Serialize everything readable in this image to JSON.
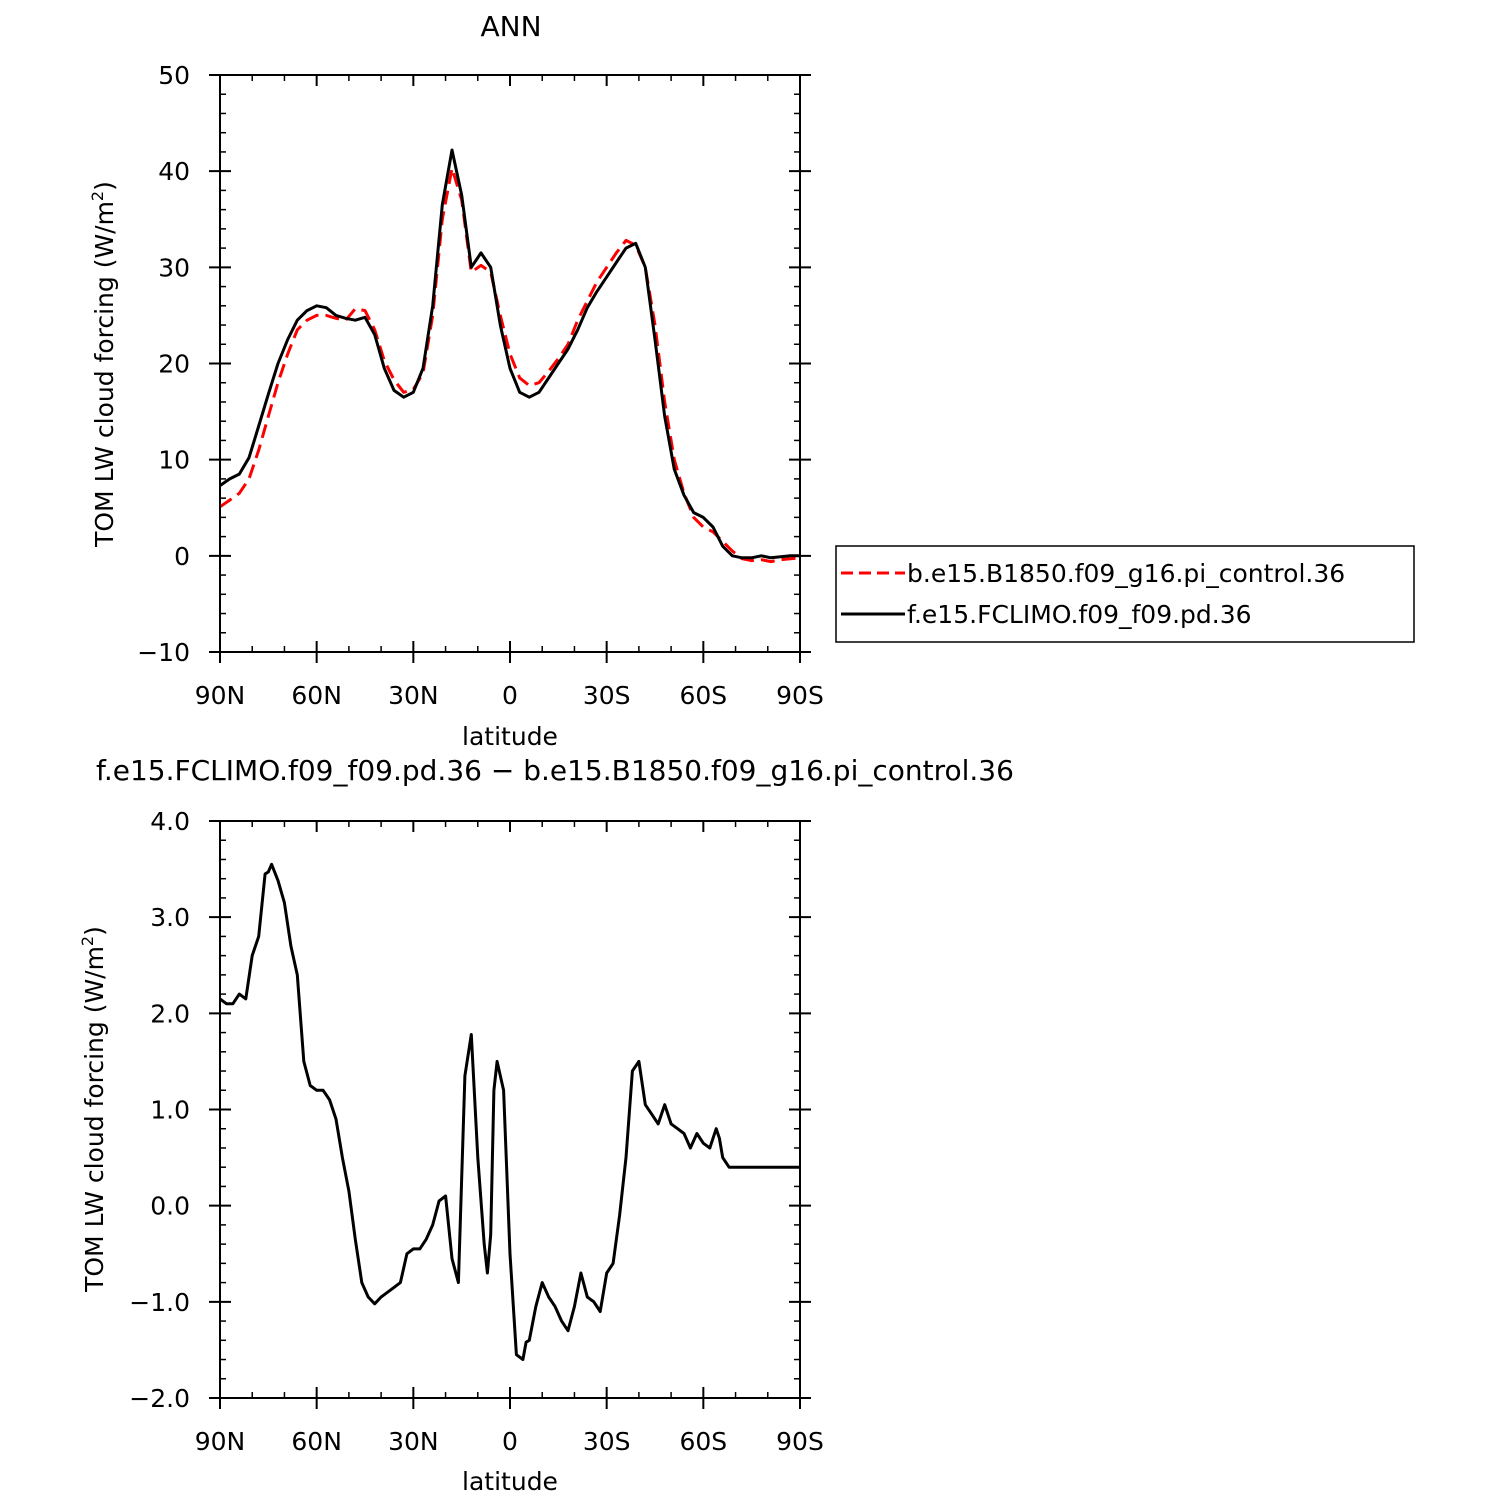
{
  "chart_data": [
    {
      "type": "line",
      "title": "ANN",
      "xlabel": "latitude",
      "ylabel": "TOM LW cloud forcing (W/m²)",
      "ylabel_main": "TOM LW cloud forcing (W/m",
      "ylabel_sup": "2",
      "ylabel_end": ")",
      "x_direction": "90N (left) to 90S (right), values in degrees latitude",
      "xlim": [
        90,
        -90
      ],
      "ylim": [
        -10,
        50
      ],
      "xticks": [
        90,
        60,
        30,
        0,
        -30,
        -60,
        -90
      ],
      "xtick_labels": [
        "90N",
        "60N",
        "30N",
        "0",
        "30S",
        "60S",
        "90S"
      ],
      "yticks": [
        -10,
        0,
        10,
        20,
        30,
        40,
        50
      ],
      "ytick_labels": [
        "−10",
        "0",
        "10",
        "20",
        "30",
        "40",
        "50"
      ],
      "legend_position": "right",
      "series": [
        {
          "name": "b.e15.B1850.f09_g16.pi_control.36",
          "color": "#ff0000",
          "dash": "dashed",
          "x": [
            90,
            87,
            84,
            81,
            78,
            75,
            72,
            69,
            66,
            63,
            60,
            57,
            54,
            51,
            48,
            45,
            42,
            39,
            36,
            33,
            30,
            27,
            24,
            21,
            18,
            15,
            12,
            9,
            6,
            3,
            0,
            -3,
            -6,
            -9,
            -12,
            -15,
            -18,
            -21,
            -24,
            -27,
            -30,
            -33,
            -36,
            -39,
            -42,
            -45,
            -48,
            -51,
            -54,
            -57,
            -60,
            -63,
            -66,
            -69,
            -72,
            -75,
            -78,
            -81,
            -84,
            -87,
            -90
          ],
          "y": [
            5.1,
            5.8,
            6.5,
            8.0,
            11.0,
            14.5,
            18.0,
            21.0,
            23.5,
            24.5,
            25.0,
            25.0,
            24.7,
            24.5,
            25.7,
            25.5,
            23.5,
            20.3,
            18.3,
            17.0,
            17.3,
            19.0,
            25.0,
            35.0,
            40.3,
            37.0,
            29.5,
            30.2,
            29.5,
            25.0,
            21.0,
            18.5,
            17.7,
            18.0,
            19.2,
            20.5,
            22.0,
            24.5,
            26.5,
            28.5,
            30.0,
            31.5,
            32.8,
            32.3,
            30.0,
            24.0,
            16.0,
            10.0,
            6.5,
            4.0,
            3.0,
            2.5,
            1.5,
            0.5,
            -0.3,
            -0.5,
            -0.4,
            -0.6,
            -0.4,
            -0.3,
            -0.2
          ]
        },
        {
          "name": "f.e15.FCLIMO.f09_f09.pd.36",
          "color": "#000000",
          "dash": "solid",
          "x": [
            90,
            87,
            84,
            81,
            78,
            75,
            72,
            69,
            66,
            63,
            60,
            57,
            54,
            51,
            48,
            45,
            42,
            39,
            36,
            33,
            30,
            27,
            24,
            21,
            18,
            15,
            12,
            9,
            6,
            3,
            0,
            -3,
            -6,
            -9,
            -12,
            -15,
            -18,
            -21,
            -24,
            -27,
            -30,
            -33,
            -36,
            -39,
            -42,
            -45,
            -48,
            -51,
            -54,
            -57,
            -60,
            -63,
            -66,
            -69,
            -72,
            -75,
            -78,
            -81,
            -84,
            -87,
            -90
          ],
          "y": [
            7.3,
            8.0,
            8.5,
            10.2,
            13.5,
            16.8,
            20.0,
            22.5,
            24.5,
            25.5,
            26.0,
            25.8,
            25.0,
            24.7,
            24.5,
            24.8,
            23.0,
            19.5,
            17.2,
            16.5,
            17.0,
            19.5,
            26.0,
            36.5,
            42.2,
            37.5,
            30.0,
            31.5,
            30.0,
            24.0,
            19.5,
            17.0,
            16.5,
            17.0,
            18.5,
            20.0,
            21.5,
            23.5,
            25.8,
            27.5,
            29.0,
            30.5,
            32.0,
            32.5,
            30.0,
            22.5,
            14.5,
            9.0,
            6.3,
            4.5,
            4.0,
            3.0,
            1.0,
            0.0,
            -0.2,
            -0.2,
            0.0,
            -0.2,
            -0.1,
            0.0,
            0.0
          ]
        }
      ]
    },
    {
      "type": "line",
      "title": "f.e15.FCLIMO.f09_f09.pd.36 − b.e15.B1850.f09_g16.pi_control.36",
      "xlabel": "latitude",
      "ylabel": "TOM LW cloud forcing (W/m²)",
      "ylabel_main": "TOM LW cloud forcing (W/m",
      "ylabel_sup": "2",
      "ylabel_end": ")",
      "xlim": [
        90,
        -90
      ],
      "ylim": [
        -2.0,
        4.0
      ],
      "xticks": [
        90,
        60,
        30,
        0,
        -30,
        -60,
        -90
      ],
      "xtick_labels": [
        "90N",
        "60N",
        "30N",
        "0",
        "30S",
        "60S",
        "90S"
      ],
      "yticks": [
        -2.0,
        -1.0,
        0.0,
        1.0,
        2.0,
        3.0,
        4.0
      ],
      "ytick_labels": [
        "−2.0",
        "−1.0",
        "0.0",
        "1.0",
        "2.0",
        "3.0",
        "4.0"
      ],
      "series": [
        {
          "color": "#000000",
          "dash": "solid",
          "x": [
            90,
            88,
            86,
            84,
            82,
            80,
            78,
            76,
            75,
            74,
            72,
            70,
            68,
            66,
            64,
            62,
            60,
            58,
            56,
            54,
            52,
            50,
            48,
            46,
            44,
            42,
            40,
            38,
            36,
            34,
            32,
            30,
            28,
            26,
            24,
            22,
            20,
            18,
            16,
            14,
            12,
            10,
            8,
            7,
            6,
            5,
            4,
            2,
            0,
            -2,
            -4,
            -5,
            -6,
            -8,
            -10,
            -12,
            -14,
            -16,
            -18,
            -20,
            -22,
            -24,
            -26,
            -28,
            -30,
            -32,
            -34,
            -36,
            -38,
            -40,
            -42,
            -44,
            -46,
            -48,
            -50,
            -52,
            -54,
            -56,
            -58,
            -60,
            -62,
            -64,
            -65,
            -66,
            -68,
            -70,
            -72,
            -74,
            -76,
            -78,
            -80,
            -82,
            -84,
            -86,
            -88,
            -90
          ],
          "y": [
            2.15,
            2.1,
            2.1,
            2.2,
            2.15,
            2.6,
            2.8,
            3.45,
            3.47,
            3.55,
            3.38,
            3.15,
            2.7,
            2.4,
            1.5,
            1.25,
            1.2,
            1.2,
            1.1,
            0.9,
            0.5,
            0.15,
            -0.35,
            -0.8,
            -0.95,
            -1.02,
            -0.95,
            -0.9,
            -0.85,
            -0.8,
            -0.5,
            -0.45,
            -0.45,
            -0.35,
            -0.2,
            0.05,
            0.1,
            -0.55,
            -0.8,
            1.35,
            1.78,
            0.5,
            -0.4,
            -0.7,
            -0.3,
            1.2,
            1.5,
            1.2,
            -0.5,
            -1.55,
            -1.6,
            -1.42,
            -1.4,
            -1.05,
            -0.8,
            -0.95,
            -1.05,
            -1.2,
            -1.3,
            -1.05,
            -0.7,
            -0.95,
            -1.0,
            -1.1,
            -0.7,
            -0.6,
            -0.1,
            0.5,
            1.4,
            1.5,
            1.05,
            0.95,
            0.85,
            1.05,
            0.85,
            0.8,
            0.75,
            0.6,
            0.75,
            0.65,
            0.6,
            0.8,
            0.7,
            0.5,
            0.4,
            0.4,
            0.4,
            0.4,
            0.4,
            0.4,
            0.4,
            0.4,
            0.4,
            0.4,
            0.4,
            0.4
          ]
        }
      ]
    }
  ]
}
